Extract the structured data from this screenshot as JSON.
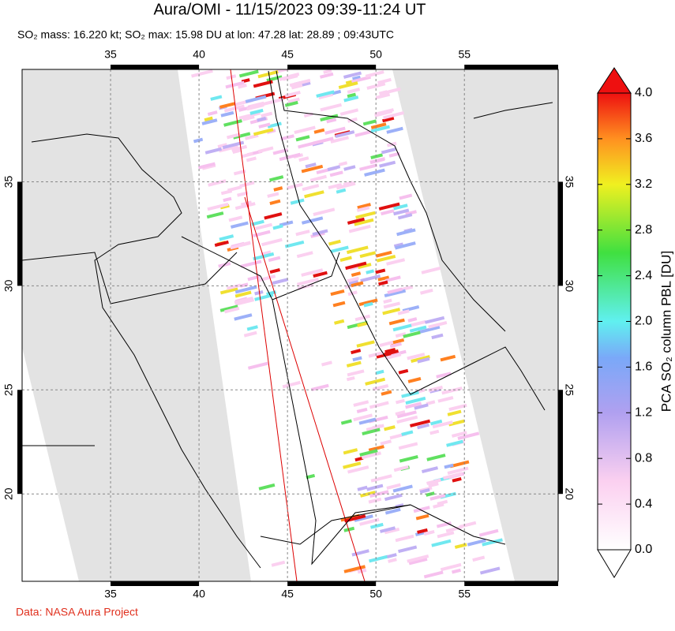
{
  "title": "Aura/OMI - 11/15/2023 09:39-11:24 UT",
  "subtitle": "SO₂ mass: 16.220 kt; SO₂ max: 15.98 DU at lon: 47.28 lat: 28.89 ; 09:43UTC",
  "map": {
    "lonlim": [
      30,
      60.3
    ],
    "latlim": [
      15.8,
      40.4
    ],
    "lonticks": [
      35,
      40,
      45,
      50,
      55
    ],
    "latticks": [
      20,
      25,
      30,
      35
    ]
  },
  "colorbar": {
    "label": "PCA SO₂ column PBL [DU]",
    "lim": [
      0,
      4
    ],
    "ticks": [
      {
        "value": 0,
        "label": "0.0"
      },
      {
        "value": 0.4,
        "label": "0.4"
      },
      {
        "value": 0.8,
        "label": "0.8"
      },
      {
        "value": 1.2,
        "label": "1.2"
      },
      {
        "value": 1.6,
        "label": "1.6"
      },
      {
        "value": 2.0,
        "label": "2.0"
      },
      {
        "value": 2.4,
        "label": "2.4"
      },
      {
        "value": 2.8,
        "label": "2.8"
      },
      {
        "value": 3.2,
        "label": "3.2"
      },
      {
        "value": 3.6,
        "label": "3.6"
      },
      {
        "value": 4.0,
        "label": "4.0"
      }
    ]
  },
  "credit": "Data: NASA Aura Project"
}
